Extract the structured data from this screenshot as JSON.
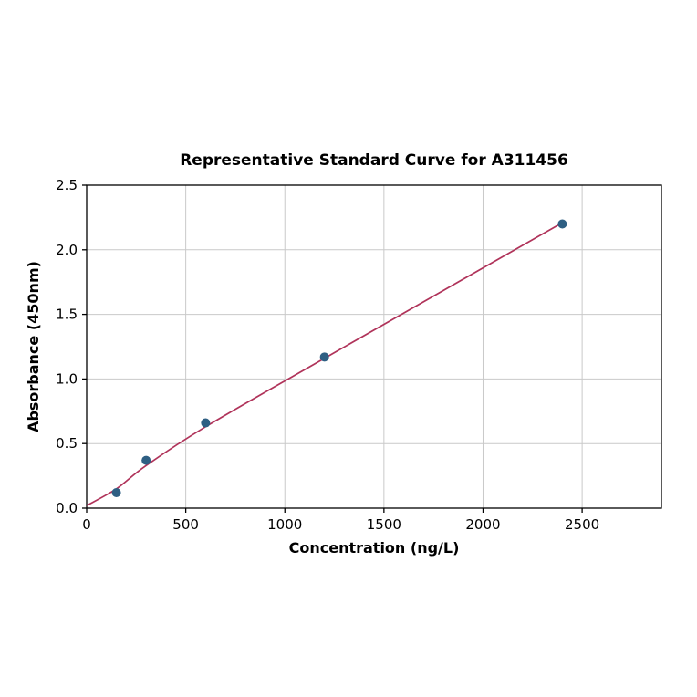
{
  "chart_data": {
    "type": "scatter",
    "title": "Representative Standard Curve for A311456",
    "xlabel": "Concentration (ng/L)",
    "ylabel": "Absorbance (450nm)",
    "xlim": [
      0,
      2900
    ],
    "ylim": [
      0,
      2.5
    ],
    "xticks": [
      0,
      500,
      1000,
      1500,
      2000,
      2500
    ],
    "yticks": [
      0.0,
      0.5,
      1.0,
      1.5,
      2.0,
      2.5
    ],
    "grid": true,
    "legend": "none",
    "series": [
      {
        "name": "standard-points",
        "type": "scatter",
        "points": [
          {
            "x": 150,
            "y": 0.12
          },
          {
            "x": 300,
            "y": 0.37
          },
          {
            "x": 600,
            "y": 0.66
          },
          {
            "x": 1200,
            "y": 1.17
          },
          {
            "x": 2400,
            "y": 2.2
          }
        ]
      },
      {
        "name": "fitted-curve",
        "type": "line",
        "points": [
          {
            "x": 0,
            "y": 0.02
          },
          {
            "x": 150,
            "y": 0.15
          },
          {
            "x": 300,
            "y": 0.33
          },
          {
            "x": 600,
            "y": 0.63
          },
          {
            "x": 1200,
            "y": 1.16
          },
          {
            "x": 2400,
            "y": 2.21
          }
        ]
      }
    ],
    "colors": {
      "point": "#2e5f83",
      "line": "#b0335a",
      "grid": "#c9c9c9",
      "axis": "#000000",
      "background": "#ffffff"
    }
  }
}
